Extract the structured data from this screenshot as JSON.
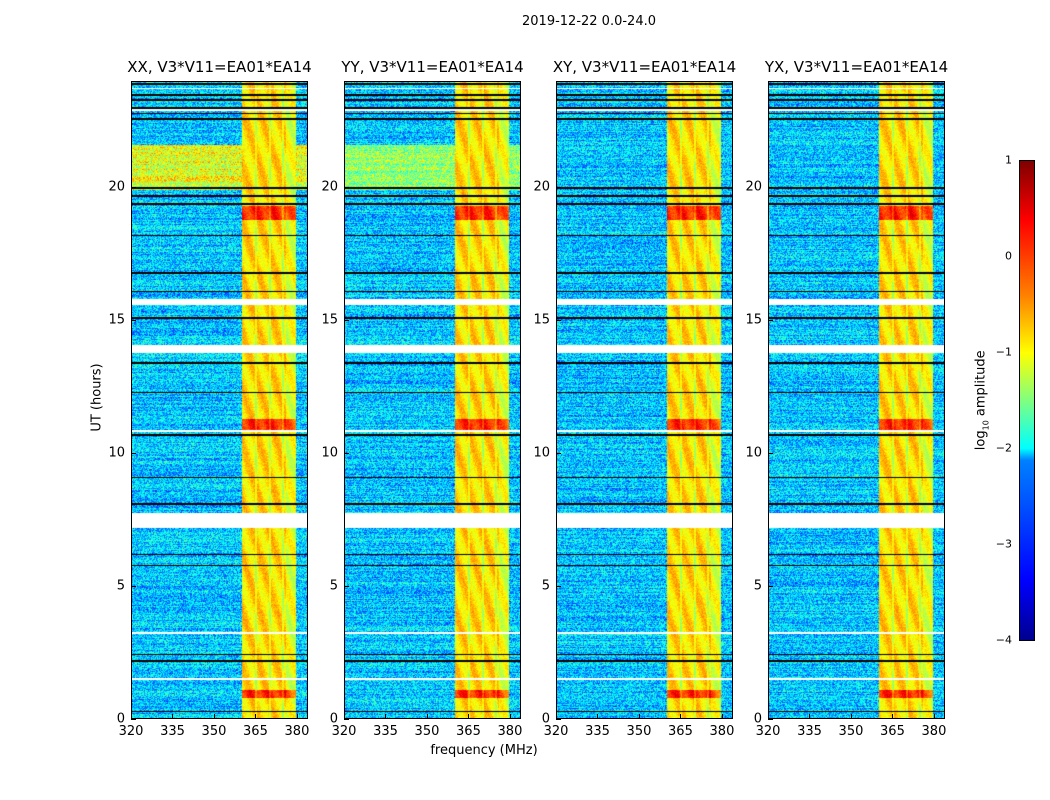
{
  "chart_data": {
    "type": "heatmap",
    "title": "2019-12-22 0.0-24.0",
    "xlabel": "frequency (MHz)",
    "ylabel": "UT (hours)",
    "xlim": [
      320,
      384
    ],
    "ylim": [
      0,
      24
    ],
    "xticks": [
      "320",
      "335",
      "350",
      "365",
      "380"
    ],
    "xtick_values": [
      320,
      335,
      350,
      365,
      380
    ],
    "yticks": [
      "0",
      "5",
      "10",
      "15",
      "20"
    ],
    "ytick_values": [
      0,
      5,
      10,
      15,
      20
    ],
    "panels": [
      {
        "title": "XX, V3*V11=EA01*EA14"
      },
      {
        "title": "YY, V3*V11=EA01*EA14"
      },
      {
        "title": "XY, V3*V11=EA01*EA14"
      },
      {
        "title": "YX, V3*V11=EA01*EA14"
      }
    ],
    "colorbar": {
      "label_main": "log",
      "label_sub": "10",
      "label_rest": " amplitude",
      "range": [
        -4,
        1
      ],
      "ticks": [
        "1",
        "0",
        "−1",
        "−2",
        "−3",
        "−4"
      ],
      "tick_values": [
        1,
        0,
        -1,
        -2,
        -3,
        -4
      ],
      "colormap": "jet"
    },
    "rfi_band_mhz": [
      360,
      379.5
    ],
    "rfi_subband_edges_mhz": [
      365,
      370,
      374.7
    ],
    "flagged_hours": [
      [
        15.6,
        15.8
      ],
      [
        13.8,
        14.1
      ],
      [
        7.2,
        7.75
      ],
      [
        3.2,
        3.3
      ],
      [
        1.5,
        1.55
      ],
      [
        23.7,
        23.75
      ],
      [
        22.9,
        22.95
      ],
      [
        10.8,
        10.9
      ]
    ],
    "black_line_hours": [
      0.3,
      2.2,
      2.45,
      5.8,
      6.2,
      8.1,
      9.1,
      10.7,
      12.3,
      13.4,
      15.1,
      16.1,
      16.8,
      18.2,
      19.4,
      19.7,
      20.0,
      22.6,
      22.8,
      23.0,
      23.3,
      23.5,
      23.9
    ],
    "bright_hours": [
      [
        18.8,
        19.3
      ],
      [
        10.9,
        11.3
      ],
      [
        0.8,
        1.1
      ]
    ],
    "elevated_bg_hours": [
      [
        19.9,
        21.6
      ]
    ],
    "background_log_amp": -2.4,
    "rfi_log_amp": -0.7
  }
}
